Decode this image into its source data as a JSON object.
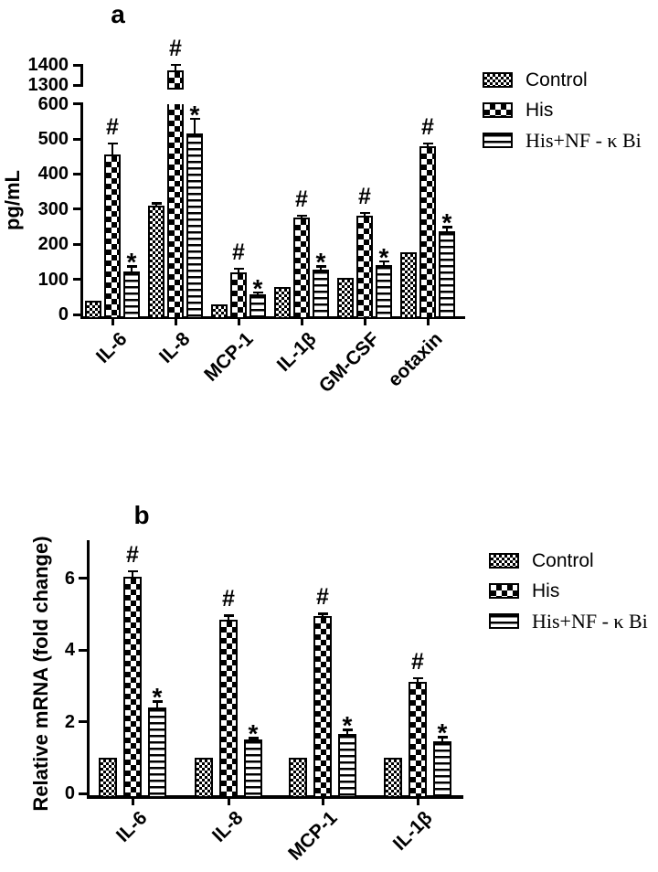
{
  "colors": {
    "foreground": "#000000",
    "background": "#ffffff"
  },
  "chart_data": [
    {
      "panel": "a",
      "type": "bar",
      "title": "a",
      "ylabel": "pg/mL",
      "xlabel": "",
      "categories": [
        "IL-6",
        "IL-8",
        "MCP-1",
        "IL-1β",
        "GM-CSF",
        "eotaxin"
      ],
      "ylim": [
        0,
        600
      ],
      "yticks": [
        0,
        100,
        200,
        300,
        400,
        500,
        600
      ],
      "axis_break": {
        "between": [
          600,
          1300
        ],
        "upper_ticks": [
          1300,
          1400
        ]
      },
      "grid": false,
      "legend_position": "right",
      "series": [
        {
          "name": "Control",
          "pattern": "fine-checker",
          "mark": "",
          "values": [
            38,
            310,
            28,
            78,
            105,
            178
          ],
          "errors": [
            0,
            10,
            0,
            0,
            0,
            0
          ]
        },
        {
          "name": "His",
          "pattern": "checker",
          "mark": "#",
          "values": [
            455,
            1375,
            120,
            275,
            280,
            478
          ],
          "errors": [
            35,
            30,
            14,
            10,
            12,
            12
          ]
        },
        {
          "name": "His+NF - κ Bi",
          "pattern": "horizontal-lines",
          "mark": "*",
          "values": [
            122,
            515,
            56,
            128,
            140,
            238
          ],
          "errors": [
            18,
            45,
            10,
            12,
            14,
            14
          ]
        }
      ]
    },
    {
      "panel": "b",
      "type": "bar",
      "title": "b",
      "ylabel": "Relative mRNA (fold change)",
      "xlabel": "",
      "categories": [
        "IL-6",
        "IL-8",
        "MCP-1",
        "IL-1β"
      ],
      "ylim": [
        0,
        7
      ],
      "yticks": [
        0,
        2,
        4,
        6
      ],
      "grid": false,
      "legend_position": "right",
      "series": [
        {
          "name": "Control",
          "pattern": "fine-checker",
          "mark": "",
          "values": [
            1.0,
            1.0,
            1.0,
            1.0
          ],
          "errors": [
            0,
            0,
            0,
            0
          ]
        },
        {
          "name": "His",
          "pattern": "checker",
          "mark": "#",
          "values": [
            6.05,
            4.85,
            4.95,
            3.1
          ],
          "errors": [
            0.18,
            0.15,
            0.1,
            0.15
          ]
        },
        {
          "name": "His+NF - κ Bi",
          "pattern": "horizontal-lines",
          "mark": "*",
          "values": [
            2.4,
            1.5,
            1.65,
            1.45
          ],
          "errors": [
            0.2,
            0.07,
            0.15,
            0.15
          ]
        }
      ]
    }
  ]
}
